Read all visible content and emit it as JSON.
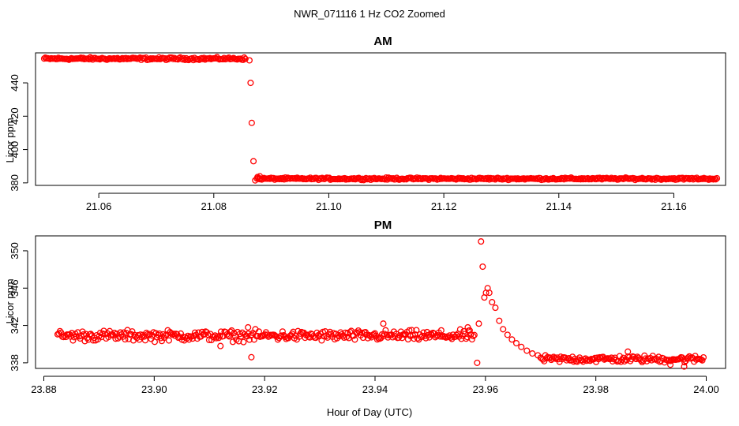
{
  "figure": {
    "title": "NWR_071116  1 Hz CO2 Zoomed",
    "xlabel": "Hour of Day (UTC)"
  },
  "chart_data": [
    {
      "type": "scatter",
      "title": "AM",
      "xlabel": "",
      "ylabel": "Licor ppm",
      "xlim": [
        21.049,
        21.169
      ],
      "ylim": [
        378.5,
        458
      ],
      "xticks": [
        "21.06",
        "21.08",
        "21.10",
        "21.12",
        "21.14",
        "21.16"
      ],
      "yticks": [
        "380",
        "400",
        "420",
        "440"
      ],
      "color": "#ff0000",
      "segments": [
        {
          "description": "high plateau",
          "x_start": 21.0505,
          "x_end": 21.0855,
          "mean": 454.5,
          "noise": 0.6
        },
        {
          "description": "low plateau",
          "x_start": 21.0875,
          "x_end": 21.1675,
          "mean": 382.5,
          "noise": 0.5
        }
      ],
      "points": [
        {
          "x": 21.0862,
          "y": 453.5
        },
        {
          "x": 21.0864,
          "y": 440
        },
        {
          "x": 21.0866,
          "y": 416
        },
        {
          "x": 21.0869,
          "y": 393
        },
        {
          "x": 21.0872,
          "y": 381.5
        },
        {
          "x": 21.0876,
          "y": 383.5
        },
        {
          "x": 21.088,
          "y": 384
        }
      ]
    },
    {
      "type": "scatter",
      "title": "PM",
      "xlabel": "Hour of Day (UTC)",
      "ylabel": "Licor ppm",
      "xlim": [
        23.8785,
        24.0035
      ],
      "ylim": [
        337.4,
        351.6
      ],
      "xticks": [
        "23.88",
        "23.90",
        "23.92",
        "23.94",
        "23.96",
        "23.98",
        "24.00"
      ],
      "yticks": [
        "338",
        "342",
        "346",
        "350"
      ],
      "color": "#ff0000",
      "segments": [
        {
          "description": "baseline",
          "x_start": 23.8825,
          "x_end": 23.958,
          "mean": 340.9,
          "noise": 0.45
        },
        {
          "description": "decay tail",
          "x_start": 23.97,
          "x_end": 23.9995,
          "mean": 338.4,
          "noise": 0.3
        }
      ],
      "points": [
        {
          "x": 23.9585,
          "y": 338.0
        },
        {
          "x": 23.9588,
          "y": 342.2
        },
        {
          "x": 23.9592,
          "y": 351.0
        },
        {
          "x": 23.9595,
          "y": 348.3
        },
        {
          "x": 23.9598,
          "y": 345.0
        },
        {
          "x": 23.9601,
          "y": 345.5
        },
        {
          "x": 23.9604,
          "y": 346.0
        },
        {
          "x": 23.9607,
          "y": 345.5
        },
        {
          "x": 23.9612,
          "y": 344.5
        },
        {
          "x": 23.9618,
          "y": 343.9
        },
        {
          "x": 23.9625,
          "y": 342.5
        },
        {
          "x": 23.9632,
          "y": 341.6
        },
        {
          "x": 23.964,
          "y": 341.0
        },
        {
          "x": 23.9648,
          "y": 340.5
        },
        {
          "x": 23.9656,
          "y": 340.1
        },
        {
          "x": 23.9665,
          "y": 339.7
        },
        {
          "x": 23.9675,
          "y": 339.3
        },
        {
          "x": 23.9685,
          "y": 339.0
        },
        {
          "x": 23.9695,
          "y": 338.8
        },
        {
          "x": 23.9176,
          "y": 338.6
        },
        {
          "x": 23.912,
          "y": 339.8
        },
        {
          "x": 23.9415,
          "y": 342.2
        },
        {
          "x": 23.917,
          "y": 341.8
        },
        {
          "x": 23.9568,
          "y": 341.8
        },
        {
          "x": 23.9858,
          "y": 339.2
        },
        {
          "x": 23.9935,
          "y": 337.8
        },
        {
          "x": 23.996,
          "y": 337.6
        }
      ]
    }
  ]
}
